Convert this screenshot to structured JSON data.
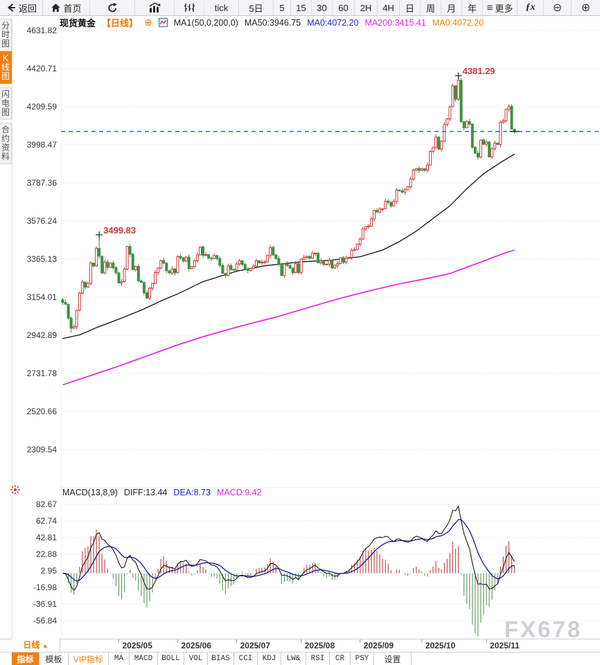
{
  "watermark": "FX678",
  "toolbar": {
    "items": [
      {
        "name": "back-button",
        "icon": "back-icon",
        "label": "返回"
      },
      {
        "name": "home-button",
        "icon": "home-icon",
        "label": "首页"
      },
      {
        "name": "refresh-button",
        "icon": "refresh-icon",
        "label": ""
      },
      {
        "name": "chart-type-bar-button",
        "icon": "bar-chart-icon",
        "label": ""
      },
      {
        "name": "chart-type-kline-button",
        "icon": "kline-icon",
        "label": ""
      },
      {
        "name": "interval-tick-button",
        "label": "tick"
      },
      {
        "name": "interval-5d-button",
        "label": "5日"
      },
      {
        "name": "interval-5m-button",
        "label": "5"
      },
      {
        "name": "interval-15m-button",
        "label": "15"
      },
      {
        "name": "interval-30m-button",
        "label": "30"
      },
      {
        "name": "interval-60m-button",
        "label": "60"
      },
      {
        "name": "interval-2h-button",
        "label": "2H"
      },
      {
        "name": "interval-4h-button",
        "label": "4H"
      },
      {
        "name": "interval-day-button",
        "label": "日"
      },
      {
        "name": "interval-week-button",
        "label": "周"
      },
      {
        "name": "interval-month-button",
        "label": "月"
      },
      {
        "name": "interval-year-button",
        "label": "年"
      },
      {
        "name": "more-button",
        "icon": "menu-icon",
        "label": "更多"
      },
      {
        "name": "fx-button",
        "icon": "fx-icon",
        "label": ""
      },
      {
        "name": "zoom-out-button",
        "icon": "zoom-out-icon",
        "label": ""
      },
      {
        "name": "zoom-in-button",
        "icon": "zoom-in-icon",
        "label": ""
      }
    ]
  },
  "header": {
    "symbol": "现货黄金",
    "period_tag": "【日线】",
    "pin": "⊕",
    "ma_settings": "MA1(50,0,200,0)",
    "ma50": "MA50:3946.75",
    "ma0_blue": "MA0:4072.20",
    "ma200": "MA200:3415.41",
    "ma0_orange": "MA0:4072.20"
  },
  "sidebar": {
    "tabs": [
      {
        "name": "sidebar-tab-time-chart",
        "label": "分时图",
        "active": false
      },
      {
        "name": "sidebar-tab-kline-chart",
        "label": "K线图",
        "active": true
      },
      {
        "name": "sidebar-tab-lightning-chart",
        "label": "闪电图",
        "active": false
      },
      {
        "name": "sidebar-tab-contract-info",
        "label": "合约资料",
        "active": false
      }
    ]
  },
  "chart_data": {
    "type": "candlestick",
    "title": "现货黄金 日线 (Spot Gold, Daily)",
    "ylim": [
      2309.54,
      4631.82
    ],
    "yticks": [
      4631.82,
      4420.71,
      4209.59,
      3998.47,
      3787.36,
      3576.24,
      3365.13,
      3154.01,
      2942.89,
      2731.78,
      2520.66,
      2309.54
    ],
    "grid": "dotted-horizontal",
    "current_price": 4072.2,
    "first_open": 3140,
    "closes": [
      3125,
      3115,
      3038,
      2982,
      2990,
      3082,
      3176,
      3238,
      3210,
      3230,
      3343,
      3327,
      3425,
      3381,
      3288,
      3349,
      3319,
      3343,
      3317,
      3289,
      3233,
      3240,
      3310,
      3435,
      3392,
      3306,
      3325,
      3244,
      3236,
      3178,
      3148,
      3204,
      3230,
      3290,
      3315,
      3357,
      3342,
      3300,
      3288,
      3310,
      3289,
      3380,
      3372,
      3354,
      3376,
      3312,
      3324,
      3356,
      3388,
      3432,
      3386,
      3390,
      3370,
      3368,
      3385,
      3368,
      3330,
      3286,
      3274,
      3328,
      3308,
      3304,
      3338,
      3356,
      3336,
      3310,
      3302,
      3314,
      3326,
      3356,
      3344,
      3348,
      3350,
      3386,
      3430,
      3388,
      3368,
      3338,
      3274,
      3338,
      3330,
      3315,
      3290,
      3340,
      3290,
      3364,
      3374,
      3380,
      3370,
      3396,
      3398,
      3345,
      3355,
      3336,
      3336,
      3358,
      3316,
      3330,
      3340,
      3372,
      3348,
      3370,
      3374,
      3414,
      3418,
      3448,
      3476,
      3532,
      3544,
      3548,
      3588,
      3635,
      3626,
      3642,
      3644,
      3686,
      3680,
      3660,
      3684,
      3748,
      3744,
      3736,
      3750,
      3766,
      3808,
      3858,
      3866,
      3857,
      3865,
      3857,
      3886,
      3962,
      3983,
      4041,
      3975,
      4018,
      4110,
      4142,
      4209,
      4325,
      4251,
      4356,
      4126,
      4093,
      4128,
      4113,
      3985,
      3952,
      3930,
      4025,
      4002,
      4014,
      3931,
      3976,
      4008,
      4000,
      4122,
      4131,
      4195,
      4211,
      4085,
      4072.2
    ],
    "high_overrides": {
      "13": 3499.83,
      "141": 4381.29
    },
    "low_overrides": {
      "3": 2956
    },
    "annotations": [
      {
        "index": 13,
        "price": 3499.83,
        "text": "3499.83"
      },
      {
        "index": 141,
        "price": 4381.29,
        "text": "4381.29"
      }
    ],
    "months": [
      {
        "label": "2025/05",
        "index": 20
      },
      {
        "label": "2025/06",
        "index": 41
      },
      {
        "label": "2025/07",
        "index": 62
      },
      {
        "label": "2025/08",
        "index": 85
      },
      {
        "label": "2025/09",
        "index": 106
      },
      {
        "label": "2025/10",
        "index": 128
      },
      {
        "label": "2025/11",
        "index": 151
      }
    ],
    "ma50": {
      "label": "MA50",
      "color": "#111111",
      "last_value": 3946.75,
      "anchors": [
        [
          0,
          2925
        ],
        [
          6,
          2945
        ],
        [
          12,
          2985
        ],
        [
          20,
          3032
        ],
        [
          28,
          3082
        ],
        [
          36,
          3140
        ],
        [
          41,
          3172
        ],
        [
          50,
          3240
        ],
        [
          62,
          3298
        ],
        [
          72,
          3328
        ],
        [
          85,
          3350
        ],
        [
          95,
          3358
        ],
        [
          106,
          3378
        ],
        [
          114,
          3415
        ],
        [
          120,
          3462
        ],
        [
          126,
          3520
        ],
        [
          132,
          3590
        ],
        [
          138,
          3660
        ],
        [
          144,
          3755
        ],
        [
          150,
          3838
        ],
        [
          156,
          3900
        ],
        [
          161,
          3946.75
        ]
      ]
    },
    "ma200": {
      "label": "MA200",
      "color": "#e617e6",
      "last_value": 3415.41,
      "anchors": [
        [
          0,
          2668
        ],
        [
          10,
          2720
        ],
        [
          20,
          2772
        ],
        [
          30,
          2828
        ],
        [
          40,
          2885
        ],
        [
          50,
          2935
        ],
        [
          62,
          2988
        ],
        [
          77,
          3048
        ],
        [
          90,
          3108
        ],
        [
          100,
          3152
        ],
        [
          110,
          3192
        ],
        [
          120,
          3228
        ],
        [
          130,
          3258
        ],
        [
          138,
          3285
        ],
        [
          144,
          3320
        ],
        [
          151,
          3360
        ],
        [
          156,
          3390
        ],
        [
          161,
          3415.41
        ]
      ]
    },
    "colors": {
      "up": "#cc3b3b",
      "down": "#3e9142",
      "current_line": "#1475e0"
    }
  },
  "macd_data": {
    "type": "macd",
    "params": "(13,8,9)",
    "derived_from": "closes",
    "fast_period": 8,
    "slow_period": 13,
    "signal_period": 9,
    "yticks": [
      82.67,
      62.74,
      42.81,
      22.88,
      2.95,
      -16.98,
      -36.91,
      -56.84
    ],
    "last": {
      "diff": 13.44,
      "dea": 8.73,
      "macd": 9.42
    },
    "colors": {
      "diff": "#1a1a1a",
      "dea": "#16169a",
      "hist_up": "#c0504d",
      "hist_down": "#69a06b"
    }
  },
  "macd_header": {
    "title": "MACD(13,8,9)",
    "diff": "DIFF:13.44",
    "dea": "DEA:8.73",
    "macd": "MACD:9.42"
  },
  "xaxis": {
    "period_label": "日线",
    "arrow": "▲"
  },
  "bottom_tabs": [
    {
      "name": "tab-indicator",
      "label": "指标",
      "state": "active"
    },
    {
      "name": "tab-template",
      "label": "模板",
      "state": ""
    },
    {
      "name": "tab-vip-indicator",
      "label": "VIP指标",
      "state": "vip"
    },
    {
      "name": "tab-ma",
      "label": "MA",
      "state": "mono"
    },
    {
      "name": "tab-macd",
      "label": "MACD",
      "state": "mono"
    },
    {
      "name": "tab-boll",
      "label": "BOLL",
      "state": "mono"
    },
    {
      "name": "tab-vol",
      "label": "VOL",
      "state": "mono"
    },
    {
      "name": "tab-bias",
      "label": "BIAS",
      "state": "mono"
    },
    {
      "name": "tab-cci",
      "label": "CCI",
      "state": "mono"
    },
    {
      "name": "tab-kdj",
      "label": "KDJ",
      "state": "mono"
    },
    {
      "name": "tab-lwr",
      "label": "LW&",
      "state": "mono"
    },
    {
      "name": "tab-rsi",
      "label": "RSI",
      "state": "mono"
    },
    {
      "name": "tab-cr",
      "label": "CR",
      "state": "mono"
    },
    {
      "name": "tab-psy",
      "label": "PSY",
      "state": "mono"
    },
    {
      "name": "tab-settings",
      "label": "设置",
      "state": ""
    }
  ]
}
